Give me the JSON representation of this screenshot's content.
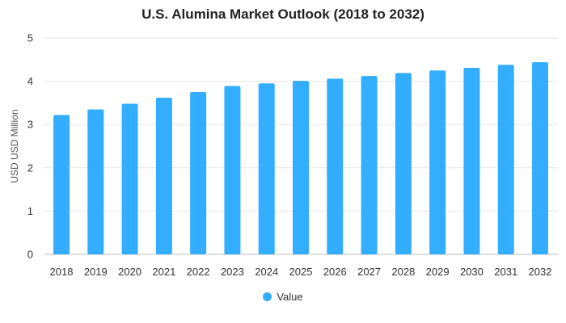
{
  "chart_data": {
    "type": "bar",
    "title": "U.S. Alumina Market Outlook (2018 to 2032)",
    "xlabel": "",
    "ylabel": "USD USD Million",
    "categories": [
      "2018",
      "2019",
      "2020",
      "2021",
      "2022",
      "2023",
      "2024",
      "2025",
      "2026",
      "2027",
      "2028",
      "2029",
      "2030",
      "2031",
      "2032"
    ],
    "series": [
      {
        "name": "Value",
        "values": [
          3.22,
          3.35,
          3.48,
          3.62,
          3.75,
          3.89,
          3.95,
          4.01,
          4.06,
          4.12,
          4.19,
          4.25,
          4.31,
          4.38,
          4.44
        ]
      }
    ],
    "ylim": [
      0,
      5
    ],
    "yticks": [
      "0",
      "1",
      "2",
      "3",
      "4",
      "5"
    ],
    "grid": true,
    "legend_position": "bottom",
    "bar_color": "#33adff",
    "grid_color": "#e6e6e6"
  }
}
